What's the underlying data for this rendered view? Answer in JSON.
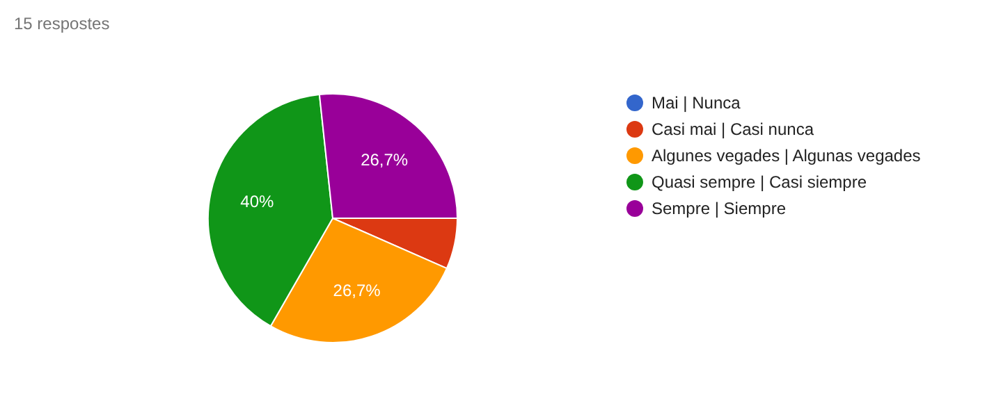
{
  "chart_data": {
    "type": "pie",
    "title": "15 respostes",
    "categories": [
      "Mai | Nunca",
      "Casi mai | Casi nunca",
      "Algunes vegades | Algunas vegades",
      "Quasi sempre | Casi siempre",
      "Sempre | Siempre"
    ],
    "values": [
      0,
      6.6,
      26.7,
      40,
      26.7
    ],
    "colors": [
      "#3366cc",
      "#dc3912",
      "#ff9900",
      "#109618",
      "#990099"
    ],
    "value_labels": [
      null,
      null,
      "26,7%",
      "40%",
      "26,7%"
    ],
    "legend": "right"
  }
}
